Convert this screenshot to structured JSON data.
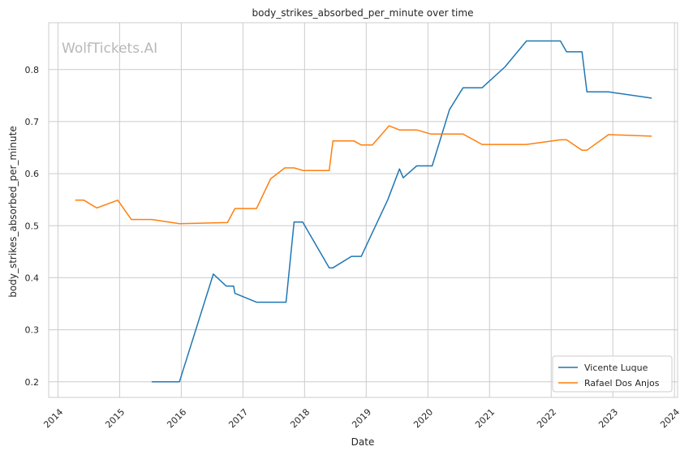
{
  "chart_data": {
    "type": "line",
    "title": "body_strikes_absorbed_per_minute over time",
    "xlabel": "Date",
    "ylabel": "body_strikes_absorbed_per_minute",
    "watermark": "WolfTickets.AI",
    "xlim": [
      2013.85,
      2024.05
    ],
    "ylim": [
      0.17,
      0.89
    ],
    "x_ticks": [
      2014,
      2015,
      2016,
      2017,
      2018,
      2019,
      2020,
      2021,
      2022,
      2023,
      2024
    ],
    "x_tick_labels": [
      "2014",
      "2015",
      "2016",
      "2017",
      "2018",
      "2019",
      "2020",
      "2021",
      "2022",
      "2023",
      "2024"
    ],
    "y_ticks": [
      0.2,
      0.3,
      0.4,
      0.5,
      0.6,
      0.7,
      0.8
    ],
    "y_tick_labels": [
      "0.2",
      "0.3",
      "0.4",
      "0.5",
      "0.6",
      "0.7",
      "0.8"
    ],
    "grid": true,
    "legend_position": "lower-right",
    "series": [
      {
        "name": "Vicente Luque",
        "color": "#1f77b4",
        "points": [
          [
            2015.52,
            0.2
          ],
          [
            2015.97,
            0.2
          ],
          [
            2016.52,
            0.407
          ],
          [
            2016.73,
            0.384
          ],
          [
            2016.85,
            0.384
          ],
          [
            2016.87,
            0.37
          ],
          [
            2017.22,
            0.353
          ],
          [
            2017.7,
            0.353
          ],
          [
            2017.83,
            0.507
          ],
          [
            2017.97,
            0.507
          ],
          [
            2018.4,
            0.419
          ],
          [
            2018.46,
            0.419
          ],
          [
            2018.76,
            0.441
          ],
          [
            2018.92,
            0.441
          ],
          [
            2019.35,
            0.55
          ],
          [
            2019.54,
            0.609
          ],
          [
            2019.6,
            0.592
          ],
          [
            2019.82,
            0.615
          ],
          [
            2020.07,
            0.615
          ],
          [
            2020.35,
            0.723
          ],
          [
            2020.57,
            0.765
          ],
          [
            2020.88,
            0.765
          ],
          [
            2021.25,
            0.805
          ],
          [
            2021.6,
            0.855
          ],
          [
            2022.15,
            0.855
          ],
          [
            2022.25,
            0.834
          ],
          [
            2022.5,
            0.834
          ],
          [
            2022.58,
            0.757
          ],
          [
            2022.93,
            0.757
          ],
          [
            2023.63,
            0.745
          ]
        ]
      },
      {
        "name": "Rafael Dos Anjos",
        "color": "#ff7f0e",
        "points": [
          [
            2014.28,
            0.549
          ],
          [
            2014.42,
            0.549
          ],
          [
            2014.63,
            0.534
          ],
          [
            2014.97,
            0.549
          ],
          [
            2015.19,
            0.512
          ],
          [
            2015.52,
            0.512
          ],
          [
            2015.97,
            0.504
          ],
          [
            2016.75,
            0.506
          ],
          [
            2016.87,
            0.533
          ],
          [
            2017.22,
            0.533
          ],
          [
            2017.45,
            0.59
          ],
          [
            2017.68,
            0.611
          ],
          [
            2017.83,
            0.611
          ],
          [
            2017.97,
            0.606
          ],
          [
            2018.4,
            0.606
          ],
          [
            2018.46,
            0.663
          ],
          [
            2018.8,
            0.663
          ],
          [
            2018.92,
            0.655
          ],
          [
            2019.1,
            0.655
          ],
          [
            2019.37,
            0.692
          ],
          [
            2019.54,
            0.684
          ],
          [
            2019.82,
            0.684
          ],
          [
            2020.05,
            0.676
          ],
          [
            2020.57,
            0.676
          ],
          [
            2020.88,
            0.656
          ],
          [
            2021.6,
            0.656
          ],
          [
            2022.15,
            0.665
          ],
          [
            2022.25,
            0.665
          ],
          [
            2022.5,
            0.645
          ],
          [
            2022.58,
            0.645
          ],
          [
            2022.93,
            0.675
          ],
          [
            2023.63,
            0.672
          ]
        ]
      }
    ]
  }
}
